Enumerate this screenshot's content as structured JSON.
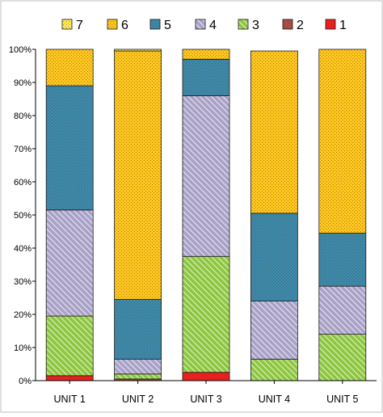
{
  "chart_data": {
    "type": "bar",
    "stacked": true,
    "categories": [
      "UNIT 1",
      "UNIT 2",
      "UNIT 3",
      "UNIT 4",
      "UNIT 5"
    ],
    "ylim": [
      0,
      100
    ],
    "yticks": [
      "0%",
      "10%",
      "20%",
      "30%",
      "40%",
      "50%",
      "60%",
      "70%",
      "80%",
      "90%",
      "100%"
    ],
    "grid": false,
    "legend_position": "top",
    "series": [
      {
        "name": "1",
        "color": "#e8211f",
        "pattern": "solid",
        "values": [
          1.5,
          0,
          2.5,
          0,
          0
        ]
      },
      {
        "name": "2",
        "color": "#a84a45",
        "pattern": "solid",
        "values": [
          0,
          0.5,
          0,
          0,
          0
        ]
      },
      {
        "name": "3",
        "color": "#8dc63f",
        "pattern": "diag-lines",
        "values": [
          18,
          1.5,
          35,
          6.5,
          14
        ]
      },
      {
        "name": "4",
        "color": "#a9a1c7",
        "pattern": "diag-lines",
        "values": [
          32,
          4.5,
          48.5,
          17.5,
          14.5
        ]
      },
      {
        "name": "5",
        "color": "#3b89ad",
        "pattern": "dots",
        "values": [
          37.5,
          18,
          11,
          26.5,
          16
        ]
      },
      {
        "name": "6",
        "color": "#ffc61e",
        "pattern": "dots",
        "values": [
          11,
          75,
          3,
          49,
          55.5
        ]
      },
      {
        "name": "7",
        "color": "#ffe85a",
        "pattern": "dots",
        "values": [
          0,
          0.5,
          0,
          0,
          0
        ]
      }
    ],
    "legend_order": [
      "7",
      "6",
      "5",
      "4",
      "3",
      "2",
      "1"
    ]
  }
}
